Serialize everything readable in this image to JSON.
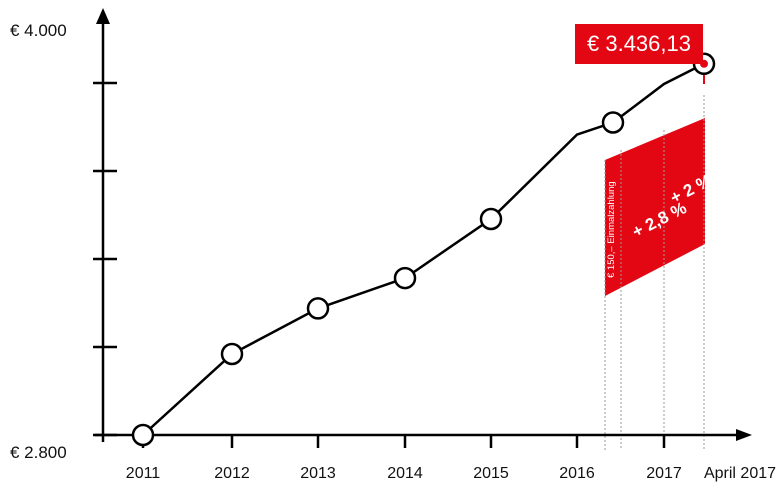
{
  "chart_data": {
    "type": "line",
    "x": [
      "2011",
      "2012",
      "2013",
      "2014",
      "2015",
      "2016",
      "2016.5",
      "2017",
      "April 2017"
    ],
    "y": [
      2800,
      3040,
      3175,
      3265,
      3440,
      3690,
      3726,
      3840,
      3900
    ],
    "marker_x": [
      "2011",
      "2012",
      "2013",
      "2014",
      "2015",
      "2016.5",
      "April 2017"
    ],
    "x_tick_labels": [
      "2011",
      "2012",
      "2013",
      "2014",
      "2015",
      "2016",
      "2017",
      "April 2017"
    ],
    "y_tick_labels": [
      "€ 4.000",
      "€ 2.800"
    ],
    "ylim": [
      2800,
      4000
    ],
    "annotations": {
      "highlight_value": "€ 3.436,13",
      "band_note": "€ 150,– Einmalzahlung",
      "raise_1": "+ 2,8 %",
      "raise_2": "+ 2 %"
    },
    "colors": {
      "line": "#000000",
      "accent": "#e30613",
      "marker_fill": "#ffffff"
    }
  }
}
